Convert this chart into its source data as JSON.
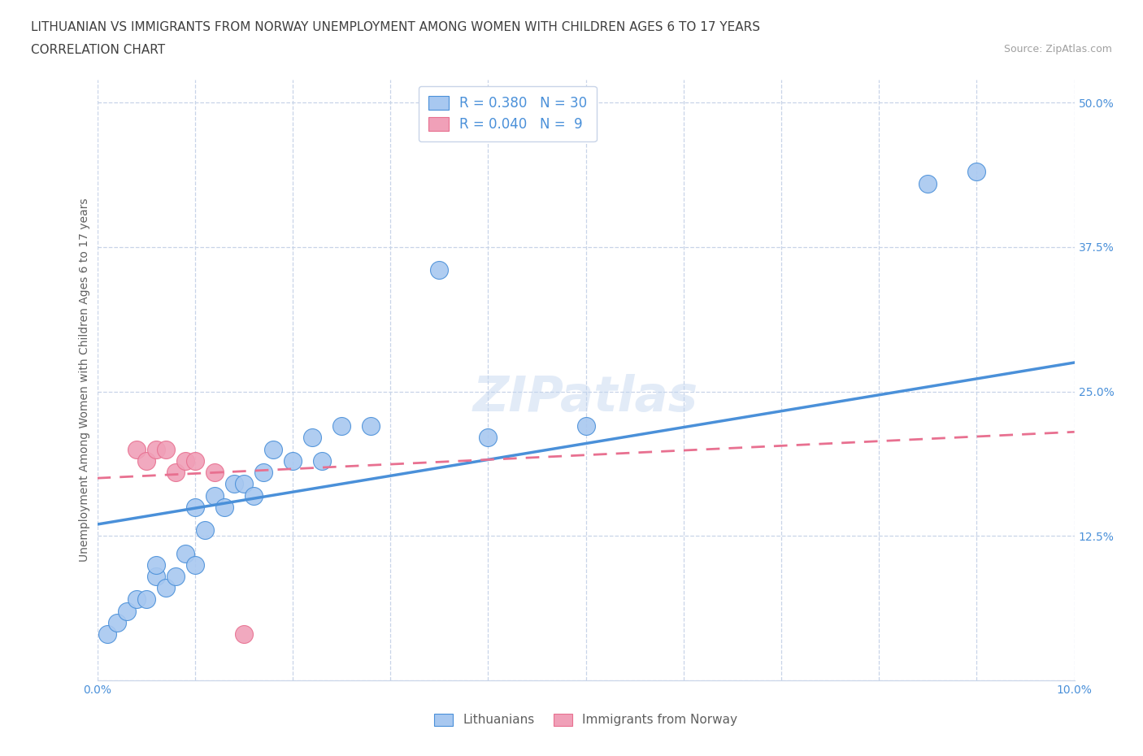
{
  "title_line1": "LITHUANIAN VS IMMIGRANTS FROM NORWAY UNEMPLOYMENT AMONG WOMEN WITH CHILDREN AGES 6 TO 17 YEARS",
  "title_line2": "CORRELATION CHART",
  "source_text": "Source: ZipAtlas.com",
  "ylabel": "Unemployment Among Women with Children Ages 6 to 17 years",
  "xlim": [
    0.0,
    0.1
  ],
  "ylim": [
    0.0,
    0.52
  ],
  "yticks": [
    0.0,
    0.125,
    0.25,
    0.375,
    0.5
  ],
  "ytick_labels": [
    "",
    "12.5%",
    "25.0%",
    "37.5%",
    "50.0%"
  ],
  "legend_label1": "Lithuanians",
  "legend_label2": "Immigrants from Norway",
  "R1": 0.38,
  "N1": 30,
  "R2": 0.04,
  "N2": 9,
  "blue_scatter_x": [
    0.001,
    0.002,
    0.003,
    0.004,
    0.005,
    0.006,
    0.006,
    0.007,
    0.008,
    0.009,
    0.01,
    0.01,
    0.011,
    0.012,
    0.013,
    0.014,
    0.015,
    0.016,
    0.017,
    0.018,
    0.02,
    0.022,
    0.023,
    0.025,
    0.028,
    0.035,
    0.04,
    0.05,
    0.085,
    0.09
  ],
  "blue_scatter_y": [
    0.04,
    0.05,
    0.06,
    0.07,
    0.07,
    0.09,
    0.1,
    0.08,
    0.09,
    0.11,
    0.1,
    0.15,
    0.13,
    0.16,
    0.15,
    0.17,
    0.17,
    0.16,
    0.18,
    0.2,
    0.19,
    0.21,
    0.19,
    0.22,
    0.22,
    0.355,
    0.21,
    0.22,
    0.43,
    0.44
  ],
  "pink_scatter_x": [
    0.004,
    0.005,
    0.006,
    0.007,
    0.008,
    0.009,
    0.01,
    0.012,
    0.015
  ],
  "pink_scatter_y": [
    0.2,
    0.19,
    0.2,
    0.2,
    0.18,
    0.19,
    0.19,
    0.18,
    0.04
  ],
  "blue_line_x0": 0.0,
  "blue_line_y0": 0.135,
  "blue_line_x1": 0.1,
  "blue_line_y1": 0.275,
  "pink_line_x0": 0.0,
  "pink_line_y0": 0.175,
  "pink_line_x1": 0.1,
  "pink_line_y1": 0.215,
  "blue_line_color": "#4a90d9",
  "pink_line_color": "#e87090",
  "dot_blue_color": "#a8c8f0",
  "dot_pink_color": "#f0a0b8",
  "background_color": "#ffffff",
  "grid_color": "#c8d4e8",
  "title_color": "#404040",
  "source_color": "#a0a0a0",
  "axis_label_color": "#4a90d9",
  "ylabel_color": "#606060"
}
